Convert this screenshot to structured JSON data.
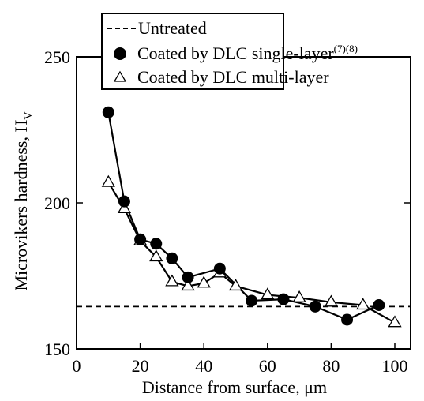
{
  "chart_data": {
    "type": "line",
    "xlabel": "Distance from surface, μm",
    "ylabel_main": "Microvikers hardness, H",
    "ylabel_sub": "V",
    "xlim": [
      0,
      100
    ],
    "ylim": [
      150,
      250
    ],
    "xticks": [
      0,
      20,
      40,
      60,
      80,
      100
    ],
    "yticks": [
      150,
      200,
      250
    ],
    "grid": false,
    "legend_position": "top",
    "series": [
      {
        "name": "Untreated",
        "style": "dashed",
        "x": [
          0,
          105
        ],
        "y": [
          164.5,
          164.5
        ]
      },
      {
        "name": "Coated by DLC single-layer",
        "name_superscript": "(7)(8)",
        "style": "filled-circle",
        "x": [
          10,
          15,
          20,
          25,
          30,
          35,
          45,
          55,
          65,
          75,
          85,
          95
        ],
        "y": [
          231,
          200.5,
          187.5,
          186,
          181,
          174.5,
          177.5,
          166.5,
          167,
          164.5,
          160,
          165
        ]
      },
      {
        "name": "Coated by DLC multi-layer",
        "style": "open-triangle",
        "x": [
          10,
          15,
          20,
          25,
          30,
          35,
          40,
          45,
          50,
          60,
          70,
          80,
          90,
          100
        ],
        "y": [
          207,
          198,
          187,
          181.5,
          173,
          171.5,
          172.5,
          176,
          171.5,
          168.5,
          167.5,
          166,
          165,
          159
        ]
      }
    ]
  }
}
